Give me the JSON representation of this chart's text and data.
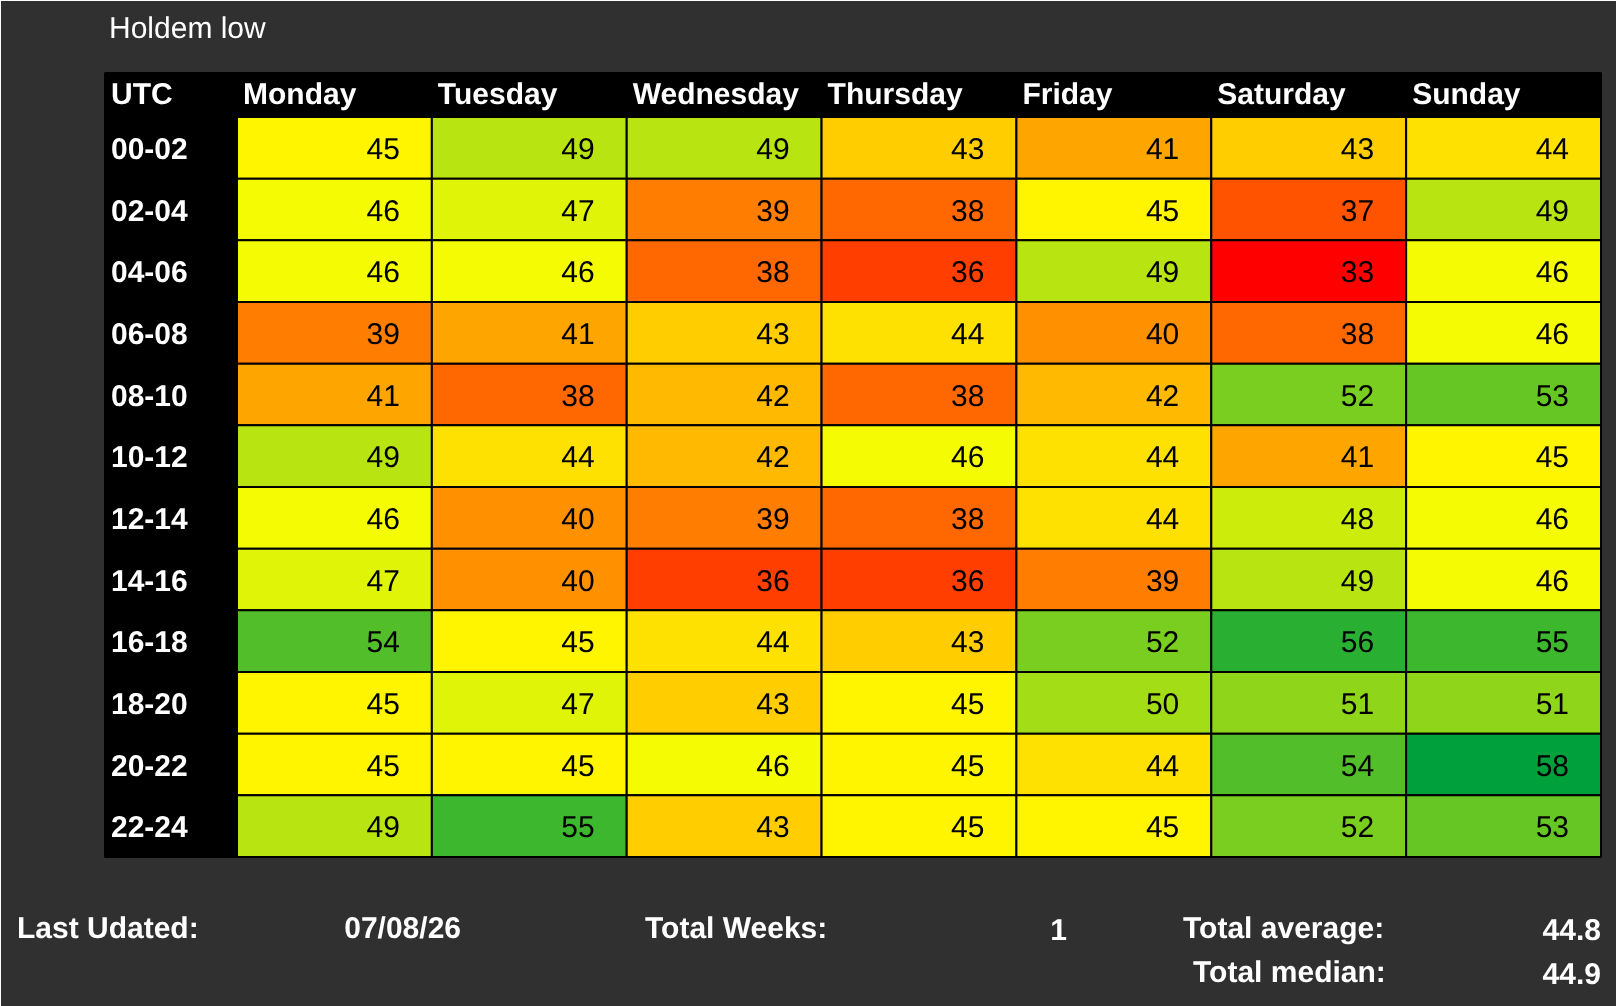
{
  "chart_data": {
    "type": "heatmap",
    "title": "Holdem low",
    "data_labels": true,
    "ylabel": "UTC",
    "categories": [
      "Monday",
      "Tuesday",
      "Wednesday",
      "Thursday",
      "Friday",
      "Saturday",
      "Sunday"
    ],
    "y_categories": [
      "00-02",
      "02-04",
      "04-06",
      "06-08",
      "08-10",
      "10-12",
      "12-14",
      "14-16",
      "16-18",
      "18-20",
      "20-22",
      "22-24"
    ],
    "cells": [
      [
        45,
        49,
        49,
        43,
        41,
        43,
        44
      ],
      [
        46,
        47,
        39,
        38,
        45,
        37,
        49
      ],
      [
        46,
        46,
        38,
        36,
        49,
        33,
        46
      ],
      [
        39,
        41,
        43,
        44,
        40,
        38,
        46
      ],
      [
        41,
        38,
        42,
        38,
        42,
        52,
        53
      ],
      [
        49,
        44,
        42,
        46,
        44,
        41,
        45
      ],
      [
        46,
        40,
        39,
        38,
        44,
        48,
        46
      ],
      [
        47,
        40,
        36,
        36,
        39,
        49,
        46
      ],
      [
        54,
        45,
        44,
        43,
        52,
        56,
        55
      ],
      [
        45,
        47,
        43,
        45,
        50,
        51,
        51
      ],
      [
        45,
        45,
        46,
        45,
        44,
        54,
        58
      ],
      [
        49,
        55,
        43,
        45,
        45,
        52,
        53
      ]
    ],
    "annotations": [
      "Last Udated:",
      "07/08/26",
      "Total Weeks:",
      "1",
      "Total average:",
      "44.8",
      "Total median:",
      "44.9"
    ]
  }
}
